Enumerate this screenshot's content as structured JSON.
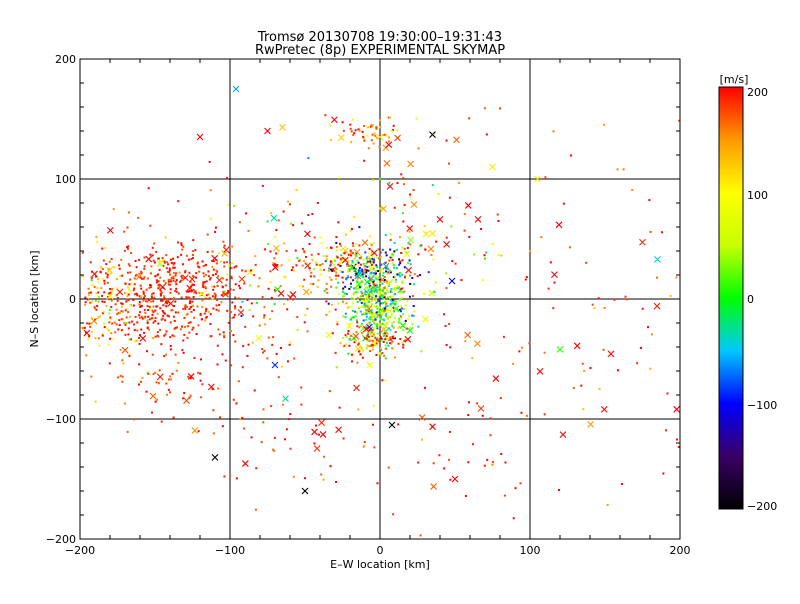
{
  "chart_data": {
    "type": "scatter",
    "title_line1": "Tromsø 20130708 19:30:00–19:31:43",
    "title_line2": "RwPretec (8p) EXPERIMENTAL SKYMAP",
    "xlabel": "E–W location [km]",
    "ylabel": "N–S location [km]",
    "xlim": [
      -200,
      200
    ],
    "ylim": [
      -200,
      200
    ],
    "xticks": [
      -200,
      -100,
      0,
      100,
      200
    ],
    "yticks": [
      -200,
      -100,
      0,
      100,
      200
    ],
    "x_tick_labels": [
      "−200",
      "−100",
      "0",
      "100",
      "200"
    ],
    "y_tick_labels": [
      "−200",
      "−100",
      "0",
      "100",
      "200"
    ],
    "grid": true,
    "colorbar": {
      "label": "[m/s]",
      "range": [
        -200,
        200
      ],
      "ticks": [
        -200,
        -100,
        0,
        100,
        200
      ],
      "tick_labels": [
        "−200",
        "−100",
        "0",
        "100",
        "200"
      ],
      "colors": [
        "#000000",
        "#3a0066",
        "#0000ff",
        "#00c8ff",
        "#00ff00",
        "#c8ff00",
        "#ffff00",
        "#ff9900",
        "#ff0000"
      ]
    },
    "markers": {
      "small": "dot",
      "large": "x"
    },
    "clusters": [
      {
        "cx": -135,
        "cy": 5,
        "sx": 28,
        "sy": 22,
        "n": 520,
        "vmean": 190,
        "vsd": 15,
        "xfrac": 0.03
      },
      {
        "cx": -180,
        "cy": -8,
        "sx": 15,
        "sy": 25,
        "n": 160,
        "vmean": 150,
        "vsd": 60,
        "xfrac": 0.06
      },
      {
        "cx": -3,
        "cy": -5,
        "sx": 12,
        "sy": 20,
        "n": 450,
        "vmean": 20,
        "vsd": 60,
        "xfrac": 0.05
      },
      {
        "cx": -5,
        "cy": 25,
        "sx": 14,
        "sy": 10,
        "n": 120,
        "vmean": -80,
        "vsd": 80,
        "xfrac": 0.06
      },
      {
        "cx": -30,
        "cy": 30,
        "sx": 22,
        "sy": 12,
        "n": 140,
        "vmean": 170,
        "vsd": 40,
        "xfrac": 0.08
      },
      {
        "cx": -10,
        "cy": 140,
        "sx": 12,
        "sy": 8,
        "n": 55,
        "vmean": 170,
        "vsd": 40,
        "xfrac": 0.12
      },
      {
        "cx": -5,
        "cy": -35,
        "sx": 12,
        "sy": 6,
        "n": 90,
        "vmean": 170,
        "vsd": 40,
        "xfrac": 0.15
      },
      {
        "cx": -70,
        "cy": 20,
        "sx": 50,
        "sy": 40,
        "n": 180,
        "vmean": 150,
        "vsd": 90,
        "xfrac": 0.12
      },
      {
        "cx": -60,
        "cy": -110,
        "sx": 35,
        "sy": 35,
        "n": 60,
        "vmean": 190,
        "vsd": 20,
        "xfrac": 0.1
      },
      {
        "cx": -140,
        "cy": -70,
        "sx": 25,
        "sy": 18,
        "n": 60,
        "vmean": 185,
        "vsd": 20,
        "xfrac": 0.1
      },
      {
        "cx": 30,
        "cy": 60,
        "sx": 25,
        "sy": 35,
        "n": 80,
        "vmean": 140,
        "vsd": 100,
        "xfrac": 0.2
      },
      {
        "cx": 110,
        "cy": -10,
        "sx": 80,
        "sy": 90,
        "n": 150,
        "vmean": 185,
        "vsd": 30,
        "xfrac": 0.15
      },
      {
        "cx": 50,
        "cy": -130,
        "sx": 25,
        "sy": 25,
        "n": 25,
        "vmean": 190,
        "vsd": 20,
        "xfrac": 0.1
      }
    ],
    "notable_points": [
      {
        "x": -96,
        "y": 175,
        "v": -60,
        "m": "x"
      },
      {
        "x": -145,
        "y": 10,
        "v": 200,
        "m": "x"
      },
      {
        "x": 35,
        "y": 137,
        "v": -200,
        "m": "x"
      },
      {
        "x": -50,
        "y": -160,
        "v": -200,
        "m": "x"
      },
      {
        "x": -110,
        "y": -132,
        "v": -200,
        "m": "x"
      },
      {
        "x": -70,
        "y": -55,
        "v": -90,
        "m": "x"
      },
      {
        "x": 120,
        "y": -42,
        "v": 10,
        "m": "x"
      },
      {
        "x": 185,
        "y": 33,
        "v": -40,
        "m": "x"
      },
      {
        "x": 105,
        "y": 100,
        "v": 110,
        "m": "x"
      },
      {
        "x": 50,
        "y": -150,
        "v": 200,
        "m": "x"
      },
      {
        "x": 122,
        "y": -113,
        "v": 200,
        "m": "x"
      },
      {
        "x": -65,
        "y": 143,
        "v": 130,
        "m": "x"
      },
      {
        "x": 48,
        "y": 15,
        "v": -100,
        "m": "x"
      },
      {
        "x": 8,
        "y": -105,
        "v": -200,
        "m": "x"
      },
      {
        "x": -63,
        "y": -83,
        "v": -30,
        "m": "x"
      },
      {
        "x": 0,
        "y": 135,
        "v": 120,
        "m": "x"
      },
      {
        "x": -120,
        "y": 135,
        "v": 200,
        "m": "x"
      },
      {
        "x": -75,
        "y": 140,
        "v": 200,
        "m": "x"
      }
    ]
  }
}
